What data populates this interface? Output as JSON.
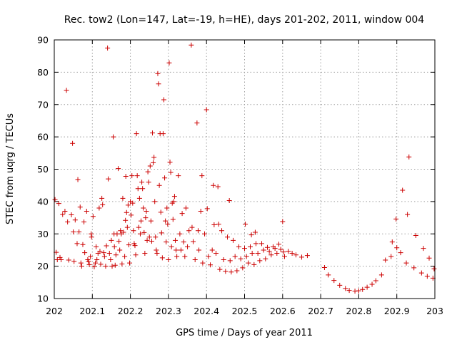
{
  "chart_data": {
    "type": "scatter",
    "title": "Rec. tow2 (Lon=147, Lat=-19, h=HE), days 201-202, 2011, window 004",
    "xlabel": "GPS time / Days of year 2011",
    "ylabel": "STEC from uqrg / TECUs",
    "xlim": [
      202,
      203
    ],
    "ylim": [
      10,
      90
    ],
    "xticks": [
      202,
      202.1,
      202.2,
      202.3,
      202.4,
      202.5,
      202.6,
      202.7,
      202.8,
      202.9,
      203
    ],
    "yticks": [
      10,
      20,
      30,
      40,
      50,
      60,
      70,
      80,
      90
    ],
    "grid": true,
    "marker": "plus",
    "marker_color": "#cc0000",
    "series": [
      {
        "points": [
          [
            202.002,
            40.6
          ],
          [
            202.005,
            24.3
          ],
          [
            202.008,
            22
          ],
          [
            202.012,
            39.4
          ],
          [
            202.015,
            22.7
          ],
          [
            202.018,
            22
          ],
          [
            202.022,
            36
          ],
          [
            202.028,
            37
          ],
          [
            202.032,
            74.4
          ],
          [
            202.035,
            33.7
          ],
          [
            202.038,
            21.9
          ],
          [
            202.045,
            35.9
          ],
          [
            202.048,
            58
          ],
          [
            202.05,
            30.6
          ],
          [
            202.052,
            21.5
          ],
          [
            202.055,
            34.3
          ],
          [
            202.06,
            27
          ],
          [
            202.062,
            46.8
          ],
          [
            202.065,
            30.6
          ],
          [
            202.068,
            38.3
          ],
          [
            202.07,
            21
          ],
          [
            202.072,
            20
          ],
          [
            202.075,
            26.7
          ],
          [
            202.078,
            33.7
          ],
          [
            202.08,
            24.2
          ],
          [
            202.085,
            37
          ],
          [
            202.088,
            22
          ],
          [
            202.09,
            21.5
          ],
          [
            202.092,
            20.5
          ],
          [
            202.095,
            23
          ],
          [
            202.097,
            30
          ],
          [
            202.098,
            29
          ],
          [
            202.102,
            35.4
          ],
          [
            202.105,
            19.8
          ],
          [
            202.108,
            21
          ],
          [
            202.11,
            26
          ],
          [
            202.112,
            22
          ],
          [
            202.115,
            24
          ],
          [
            202.118,
            38
          ],
          [
            202.12,
            24.6
          ],
          [
            202.122,
            20.6
          ],
          [
            202.125,
            41
          ],
          [
            202.127,
            39
          ],
          [
            202.13,
            24.2
          ],
          [
            202.132,
            23
          ],
          [
            202.135,
            20
          ],
          [
            202.137,
            26.3
          ],
          [
            202.14,
            87.5
          ],
          [
            202.142,
            47
          ],
          [
            202.145,
            24
          ],
          [
            202.148,
            22
          ],
          [
            202.15,
            28
          ],
          [
            202.152,
            20
          ],
          [
            202.155,
            60
          ],
          [
            202.157,
            30
          ],
          [
            202.158,
            26
          ],
          [
            202.16,
            20.3
          ],
          [
            202.162,
            23.5
          ],
          [
            202.165,
            30
          ],
          [
            202.168,
            50.2
          ],
          [
            202.17,
            27.7
          ],
          [
            202.172,
            25
          ],
          [
            202.174,
            31
          ],
          [
            202.176,
            30
          ],
          [
            202.178,
            20.7
          ],
          [
            202.18,
            41
          ],
          [
            202.182,
            30.5
          ],
          [
            202.185,
            23
          ],
          [
            202.187,
            34.2
          ],
          [
            202.188,
            47.8
          ],
          [
            202.19,
            36.6
          ],
          [
            202.192,
            32
          ],
          [
            202.194,
            38.9
          ],
          [
            202.196,
            26.6
          ],
          [
            202.198,
            21
          ],
          [
            202.2,
            40
          ],
          [
            202.202,
            35.8
          ],
          [
            202.204,
            48
          ],
          [
            202.206,
            39.5
          ],
          [
            202.208,
            31
          ],
          [
            202.21,
            27
          ],
          [
            202.212,
            26.4
          ],
          [
            202.214,
            23.5
          ],
          [
            202.216,
            61
          ],
          [
            202.218,
            48
          ],
          [
            202.22,
            44
          ],
          [
            202.222,
            32
          ],
          [
            202.224,
            41
          ],
          [
            202.226,
            30
          ],
          [
            202.228,
            34
          ],
          [
            202.23,
            46
          ],
          [
            202.232,
            44
          ],
          [
            202.234,
            38
          ],
          [
            202.236,
            30.4
          ],
          [
            202.238,
            24
          ],
          [
            202.24,
            35
          ],
          [
            202.242,
            37
          ],
          [
            202.244,
            28
          ],
          [
            202.246,
            49.2
          ],
          [
            202.248,
            46
          ],
          [
            202.25,
            29
          ],
          [
            202.252,
            51
          ],
          [
            202.254,
            34
          ],
          [
            202.256,
            27.7
          ],
          [
            202.258,
            61.2
          ],
          [
            202.26,
            52
          ],
          [
            202.262,
            53.7
          ],
          [
            202.264,
            40
          ],
          [
            202.266,
            29
          ],
          [
            202.268,
            25
          ],
          [
            202.27,
            24
          ],
          [
            202.272,
            79.6
          ],
          [
            202.274,
            76.4
          ],
          [
            202.276,
            45
          ],
          [
            202.278,
            61
          ],
          [
            202.28,
            36.7
          ],
          [
            202.282,
            30.3
          ],
          [
            202.284,
            22.6
          ],
          [
            202.286,
            61
          ],
          [
            202.288,
            71.5
          ],
          [
            202.29,
            47.3
          ],
          [
            202.292,
            34
          ],
          [
            202.294,
            27.5
          ],
          [
            202.296,
            38
          ],
          [
            202.298,
            33
          ],
          [
            202.3,
            22
          ],
          [
            202.302,
            82.9
          ],
          [
            202.304,
            52.2
          ],
          [
            202.306,
            49
          ],
          [
            202.308,
            26
          ],
          [
            202.31,
            39.5
          ],
          [
            202.312,
            34.5
          ],
          [
            202.314,
            40
          ],
          [
            202.316,
            41.6
          ],
          [
            202.318,
            28
          ],
          [
            202.32,
            25
          ],
          [
            202.322,
            23
          ],
          [
            202.326,
            48
          ],
          [
            202.33,
            30
          ],
          [
            202.333,
            25
          ],
          [
            202.336,
            36.3
          ],
          [
            202.34,
            27.5
          ],
          [
            202.343,
            23
          ],
          [
            202.346,
            38
          ],
          [
            202.35,
            26
          ],
          [
            202.354,
            31
          ],
          [
            202.36,
            88.4
          ],
          [
            202.362,
            32
          ],
          [
            202.365,
            27.6
          ],
          [
            202.37,
            22
          ],
          [
            202.375,
            64.3
          ],
          [
            202.378,
            31
          ],
          [
            202.38,
            25
          ],
          [
            202.385,
            37
          ],
          [
            202.388,
            48
          ],
          [
            202.39,
            21
          ],
          [
            202.395,
            30
          ],
          [
            202.4,
            68.4
          ],
          [
            202.402,
            37.8
          ],
          [
            202.405,
            23
          ],
          [
            202.41,
            20.4
          ],
          [
            202.415,
            25
          ],
          [
            202.418,
            45
          ],
          [
            202.42,
            32.8
          ],
          [
            202.425,
            24
          ],
          [
            202.43,
            44.6
          ],
          [
            202.432,
            33
          ],
          [
            202.435,
            19
          ],
          [
            202.44,
            31
          ],
          [
            202.445,
            22
          ],
          [
            202.45,
            18.4
          ],
          [
            202.455,
            29
          ],
          [
            202.46,
            40.3
          ],
          [
            202.462,
            21.7
          ],
          [
            202.465,
            18.2
          ],
          [
            202.47,
            28
          ],
          [
            202.475,
            23
          ],
          [
            202.48,
            18.6
          ],
          [
            202.485,
            26
          ],
          [
            202.49,
            22.3
          ],
          [
            202.495,
            19.5
          ],
          [
            202.5,
            25.5
          ],
          [
            202.502,
            33
          ],
          [
            202.505,
            23
          ],
          [
            202.51,
            21
          ],
          [
            202.515,
            26
          ],
          [
            202.518,
            29.7
          ],
          [
            202.52,
            24
          ],
          [
            202.525,
            20.5
          ],
          [
            202.528,
            30.5
          ],
          [
            202.53,
            27
          ],
          [
            202.535,
            24
          ],
          [
            202.54,
            21.7
          ],
          [
            202.545,
            27
          ],
          [
            202.55,
            25
          ],
          [
            202.555,
            22.3
          ],
          [
            202.56,
            25.8
          ],
          [
            202.565,
            24.6
          ],
          [
            202.57,
            23.5
          ],
          [
            202.575,
            26
          ],
          [
            202.58,
            25.5
          ],
          [
            202.585,
            24
          ],
          [
            202.59,
            26.8
          ],
          [
            202.595,
            25.2
          ],
          [
            202.6,
            33.8
          ],
          [
            202.602,
            24.4
          ],
          [
            202.605,
            23
          ],
          [
            202.615,
            24.6
          ],
          [
            202.625,
            24
          ],
          [
            202.635,
            23.5
          ],
          [
            202.65,
            22.8
          ],
          [
            202.665,
            23.3
          ],
          [
            202.71,
            19.6
          ],
          [
            202.72,
            17.3
          ],
          [
            202.735,
            15.6
          ],
          [
            202.75,
            14.1
          ],
          [
            202.765,
            13.1
          ],
          [
            202.775,
            12.5
          ],
          [
            202.79,
            12.3
          ],
          [
            202.8,
            12.4
          ],
          [
            202.81,
            12.8
          ],
          [
            202.822,
            13.5
          ],
          [
            202.835,
            14.4
          ],
          [
            202.845,
            15.5
          ],
          [
            202.86,
            17.3
          ],
          [
            202.87,
            21.9
          ],
          [
            202.885,
            23
          ],
          [
            202.888,
            27.5
          ],
          [
            202.898,
            34.6
          ],
          [
            202.9,
            25.7
          ],
          [
            202.91,
            24.2
          ],
          [
            202.915,
            43.5
          ],
          [
            202.925,
            21
          ],
          [
            202.928,
            36
          ],
          [
            202.932,
            53.8
          ],
          [
            202.945,
            19.5
          ],
          [
            202.95,
            29.5
          ],
          [
            202.965,
            17.9
          ],
          [
            202.97,
            25.5
          ],
          [
            202.98,
            16.9
          ],
          [
            202.985,
            22.5
          ],
          [
            202.995,
            16.3
          ],
          [
            202.998,
            19.2
          ]
        ]
      }
    ]
  }
}
